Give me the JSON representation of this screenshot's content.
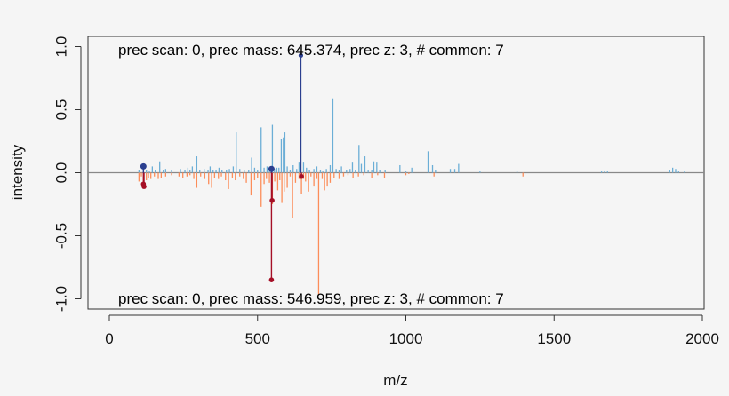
{
  "colors": {
    "background": "#f5f5f5",
    "top_series": "#6baed6",
    "bottom_series": "#fc8d59",
    "top_matched": "#2b3f8f",
    "bottom_matched": "#a50f26",
    "baseline": "#888888"
  },
  "chart_data": {
    "type": "mirror-spectrum",
    "xlabel": "m/z",
    "ylabel": "intensity",
    "xlim": [
      0,
      2000
    ],
    "ylim": [
      -1.0,
      1.0
    ],
    "x_ticks": [
      0,
      500,
      1000,
      1500,
      2000
    ],
    "y_ticks": [
      -1.0,
      -0.5,
      0.0,
      0.5,
      1.0
    ],
    "y_tick_labels": [
      "-1.0",
      "-0.5",
      "0.0",
      "0.5",
      "1.0"
    ],
    "top_annotation": "prec scan: 0, prec mass: 645.374, prec z: 3, # common: 7",
    "bottom_annotation": "prec scan: 0, prec mass: 546.959, prec z: 3, # common: 7",
    "top_peaks": [
      [
        100,
        0.02
      ],
      [
        115,
        0.06
      ],
      [
        125,
        0.02
      ],
      [
        135,
        0.01
      ],
      [
        145,
        0.05
      ],
      [
        155,
        0.02
      ],
      [
        170,
        0.09
      ],
      [
        182,
        0.02
      ],
      [
        190,
        0.03
      ],
      [
        210,
        0.02
      ],
      [
        240,
        0.03
      ],
      [
        255,
        0.02
      ],
      [
        265,
        0.04
      ],
      [
        272,
        0.02
      ],
      [
        280,
        0.05
      ],
      [
        295,
        0.13
      ],
      [
        305,
        0.02
      ],
      [
        320,
        0.03
      ],
      [
        333,
        0.02
      ],
      [
        340,
        0.05
      ],
      [
        350,
        0.02
      ],
      [
        360,
        0.02
      ],
      [
        370,
        0.04
      ],
      [
        380,
        0.02
      ],
      [
        395,
        0.02
      ],
      [
        405,
        0.03
      ],
      [
        418,
        0.05
      ],
      [
        428,
        0.32
      ],
      [
        440,
        0.03
      ],
      [
        455,
        0.02
      ],
      [
        470,
        0.02
      ],
      [
        480,
        0.12
      ],
      [
        490,
        0.04
      ],
      [
        500,
        0.02
      ],
      [
        512,
        0.36
      ],
      [
        522,
        0.04
      ],
      [
        532,
        0.05
      ],
      [
        540,
        0.02
      ],
      [
        550,
        0.38
      ],
      [
        557,
        0.03
      ],
      [
        565,
        0.04
      ],
      [
        572,
        0.04
      ],
      [
        580,
        0.27
      ],
      [
        587,
        0.28
      ],
      [
        592,
        0.32
      ],
      [
        600,
        0.05
      ],
      [
        610,
        0.02
      ],
      [
        620,
        0.06
      ],
      [
        632,
        0.03
      ],
      [
        640,
        0.08
      ],
      [
        646,
        0.58
      ],
      [
        655,
        0.08
      ],
      [
        665,
        0.04
      ],
      [
        675,
        0.02
      ],
      [
        690,
        0.03
      ],
      [
        700,
        0.05
      ],
      [
        712,
        0.02
      ],
      [
        720,
        0.01
      ],
      [
        732,
        0.03
      ],
      [
        745,
        0.06
      ],
      [
        754,
        0.59
      ],
      [
        765,
        0.03
      ],
      [
        775,
        0.02
      ],
      [
        783,
        0.05
      ],
      [
        800,
        0.02
      ],
      [
        812,
        0.03
      ],
      [
        820,
        0.08
      ],
      [
        830,
        0.02
      ],
      [
        842,
        0.22
      ],
      [
        850,
        0.07
      ],
      [
        862,
        0.13
      ],
      [
        873,
        0.02
      ],
      [
        885,
        0.02
      ],
      [
        892,
        0.09
      ],
      [
        902,
        0.08
      ],
      [
        912,
        0.02
      ],
      [
        930,
        0.02
      ],
      [
        980,
        0.06
      ],
      [
        1000,
        0.01
      ],
      [
        1020,
        0.04
      ],
      [
        1075,
        0.17
      ],
      [
        1090,
        0.06
      ],
      [
        1100,
        0.02
      ],
      [
        1150,
        0.03
      ],
      [
        1165,
        0.03
      ],
      [
        1178,
        0.07
      ],
      [
        1250,
        0.01
      ],
      [
        1375,
        0.01
      ],
      [
        1660,
        0.01
      ],
      [
        1670,
        0.01
      ],
      [
        1680,
        0.01
      ],
      [
        1890,
        0.02
      ],
      [
        1900,
        0.04
      ],
      [
        1910,
        0.03
      ],
      [
        1920,
        0.01
      ],
      [
        1940,
        0.01
      ]
    ],
    "bottom_peaks": [
      [
        100,
        0.07
      ],
      [
        108,
        0.03
      ],
      [
        115,
        0.11
      ],
      [
        125,
        0.06
      ],
      [
        132,
        0.04
      ],
      [
        140,
        0.05
      ],
      [
        152,
        0.03
      ],
      [
        165,
        0.05
      ],
      [
        175,
        0.04
      ],
      [
        190,
        0.03
      ],
      [
        210,
        0.02
      ],
      [
        235,
        0.03
      ],
      [
        248,
        0.04
      ],
      [
        262,
        0.03
      ],
      [
        272,
        0.02
      ],
      [
        285,
        0.05
      ],
      [
        295,
        0.12
      ],
      [
        308,
        0.03
      ],
      [
        322,
        0.05
      ],
      [
        335,
        0.09
      ],
      [
        345,
        0.12
      ],
      [
        355,
        0.04
      ],
      [
        368,
        0.05
      ],
      [
        378,
        0.03
      ],
      [
        392,
        0.06
      ],
      [
        402,
        0.13
      ],
      [
        415,
        0.04
      ],
      [
        425,
        0.06
      ],
      [
        440,
        0.03
      ],
      [
        452,
        0.05
      ],
      [
        462,
        0.08
      ],
      [
        478,
        0.18
      ],
      [
        490,
        0.06
      ],
      [
        500,
        0.04
      ],
      [
        512,
        0.27
      ],
      [
        522,
        0.09
      ],
      [
        530,
        0.05
      ],
      [
        540,
        0.08
      ],
      [
        550,
        0.25
      ],
      [
        558,
        0.07
      ],
      [
        568,
        0.14
      ],
      [
        575,
        0.06
      ],
      [
        582,
        0.24
      ],
      [
        590,
        0.15
      ],
      [
        600,
        0.12
      ],
      [
        610,
        0.03
      ],
      [
        618,
        0.36
      ],
      [
        628,
        0.08
      ],
      [
        640,
        0.05
      ],
      [
        648,
        0.17
      ],
      [
        655,
        0.05
      ],
      [
        662,
        0.07
      ],
      [
        672,
        0.15
      ],
      [
        680,
        0.03
      ],
      [
        690,
        0.11
      ],
      [
        700,
        0.05
      ],
      [
        706,
        0.97
      ],
      [
        718,
        0.05
      ],
      [
        726,
        0.14
      ],
      [
        735,
        0.11
      ],
      [
        745,
        0.08
      ],
      [
        758,
        0.04
      ],
      [
        775,
        0.05
      ],
      [
        790,
        0.03
      ],
      [
        805,
        0.02
      ],
      [
        822,
        0.04
      ],
      [
        840,
        0.03
      ],
      [
        858,
        0.02
      ],
      [
        885,
        0.04
      ],
      [
        905,
        0.02
      ],
      [
        928,
        0.04
      ],
      [
        1000,
        0.02
      ],
      [
        1010,
        0.01
      ],
      [
        1095,
        0.03
      ],
      [
        1395,
        0.03
      ]
    ],
    "top_matched": [
      [
        115,
        0.05
      ],
      [
        547,
        0.03
      ],
      [
        646,
        0.93
      ]
    ],
    "bottom_matched": [
      [
        115,
        0.09
      ],
      [
        117,
        0.11
      ],
      [
        547,
        0.85
      ],
      [
        549,
        0.22
      ],
      [
        648,
        0.03
      ]
    ]
  }
}
